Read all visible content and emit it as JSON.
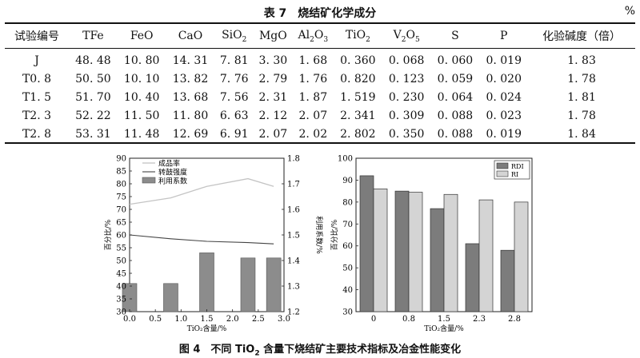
{
  "table": {
    "title": "表 7　烧结矿化学成分",
    "unit": "%",
    "headers": [
      {
        "text": "试验编号"
      },
      {
        "text": "TFe"
      },
      {
        "text": "FeO"
      },
      {
        "text": "CaO"
      },
      {
        "base": "SiO",
        "sub": "2"
      },
      {
        "text": "MgO"
      },
      {
        "base": "Al",
        "sub": "2",
        "base2": "O",
        "sub2": "3"
      },
      {
        "base": "TiO",
        "sub": "2"
      },
      {
        "base": "V",
        "sub": "2",
        "base2": "O",
        "sub2": "5"
      },
      {
        "text": "S"
      },
      {
        "text": "P"
      },
      {
        "text": "化验碱度（倍）"
      }
    ],
    "rows": [
      [
        "J",
        "48. 48",
        "10. 80",
        "14. 31",
        "7. 81",
        "3. 30",
        "1. 68",
        "0. 360",
        "0. 068",
        "0. 060",
        "0. 019",
        "1. 83"
      ],
      [
        "T0. 8",
        "50. 50",
        "10. 10",
        "13. 82",
        "7. 76",
        "2. 79",
        "1. 76",
        "0. 820",
        "0. 123",
        "0. 059",
        "0. 020",
        "1. 78"
      ],
      [
        "T1. 5",
        "51. 70",
        "10. 40",
        "13. 68",
        "7. 56",
        "2. 31",
        "1. 87",
        "1. 519",
        "0. 230",
        "0. 064",
        "0. 024",
        "1. 81"
      ],
      [
        "T2. 3",
        "52. 22",
        "11. 50",
        "11. 80",
        "6. 63",
        "2. 12",
        "2. 07",
        "2. 341",
        "0. 309",
        "0. 088",
        "0. 023",
        "1. 78"
      ],
      [
        "T2. 8",
        "53. 31",
        "11. 48",
        "12. 69",
        "6. 91",
        "2. 07",
        "2. 02",
        "2. 802",
        "0. 350",
        "0. 088",
        "0. 019",
        "1. 84"
      ]
    ]
  },
  "chart_data": [
    {
      "type": "bar+line",
      "title": "",
      "xlabel": "TiO₂含量/%",
      "ylabel": "百分比/%",
      "y2label": "利用系数/%",
      "xlim": [
        0,
        3
      ],
      "xticks": [
        "0.0",
        "0.5",
        "1.0",
        "1.5",
        "2.0",
        "2.5",
        "3.0"
      ],
      "ylim": [
        30,
        90
      ],
      "yticks": [
        "30",
        "35",
        "40",
        "45",
        "50",
        "55",
        "60",
        "65",
        "70",
        "75",
        "80",
        "85",
        "90"
      ],
      "y2lim": [
        1.2,
        1.8
      ],
      "y2ticks": [
        "1.2",
        "1.3",
        "1.4",
        "1.5",
        "1.6",
        "1.7",
        "1.8"
      ],
      "legend": [
        "成品率",
        "转鼓强度",
        "利用系数"
      ],
      "series": [
        {
          "name": "成品率",
          "kind": "line",
          "color": "#c4c4c4",
          "x": [
            0,
            0.8,
            1.5,
            2.3,
            2.8
          ],
          "y": [
            72,
            74.5,
            79,
            82,
            79
          ]
        },
        {
          "name": "转鼓强度",
          "kind": "line",
          "color": "#444444",
          "x": [
            0,
            0.8,
            1.5,
            2.3,
            2.8
          ],
          "y": [
            60,
            58.5,
            57.5,
            57,
            56.5
          ]
        },
        {
          "name": "利用系数",
          "kind": "bar",
          "axis": "y2",
          "color": "#8c8c8c",
          "x": [
            0,
            0.8,
            1.5,
            2.3,
            2.8
          ],
          "y": [
            1.31,
            1.31,
            1.43,
            1.41,
            1.41
          ]
        }
      ]
    },
    {
      "type": "bar",
      "title": "",
      "xlabel": "TiO₂含量/%",
      "ylabel": "百分比/%",
      "categories": [
        "0",
        "0.8",
        "1.5",
        "2.3",
        "2.8"
      ],
      "ylim": [
        30,
        100
      ],
      "yticks": [
        "30",
        "40",
        "50",
        "60",
        "70",
        "80",
        "90",
        "100"
      ],
      "legend": [
        "RDI",
        "RI"
      ],
      "series": [
        {
          "name": "RDI",
          "color": "#7c7c7c",
          "values": [
            92,
            85,
            77,
            61,
            58
          ]
        },
        {
          "name": "RI",
          "color": "#d4d4d4",
          "values": [
            86,
            84.5,
            83.5,
            81,
            80
          ]
        }
      ]
    }
  ],
  "figure_caption": {
    "prefix": "图 4　不同 TiO",
    "sub": "2",
    "suffix": " 含量下烧结矿主要技术指标及冶金性能变化"
  }
}
